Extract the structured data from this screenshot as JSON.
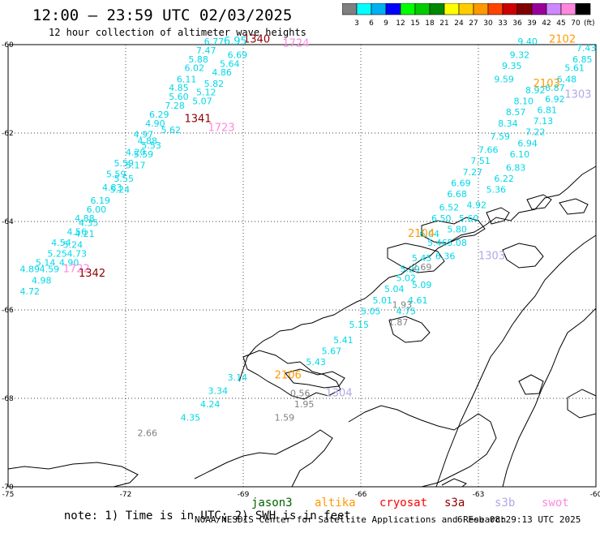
{
  "header": {
    "title": "12:00 – 23:59 UTC 02/03/2025",
    "subtitle": "12 hour collection of altimeter wave heights"
  },
  "color_scale": {
    "unit": "(ft)",
    "bins": [
      {
        "label": "3",
        "color": "#7f7f7f"
      },
      {
        "label": "6",
        "color": "#00ffff"
      },
      {
        "label": "9",
        "color": "#00b0f0"
      },
      {
        "label": "12",
        "color": "#0000ff"
      },
      {
        "label": "15",
        "color": "#00ff00"
      },
      {
        "label": "18",
        "color": "#00cc00"
      },
      {
        "label": "21",
        "color": "#008800"
      },
      {
        "label": "24",
        "color": "#ffff00"
      },
      {
        "label": "27",
        "color": "#ffcc00"
      },
      {
        "label": "30",
        "color": "#ff9900"
      },
      {
        "label": "33",
        "color": "#ff4400"
      },
      {
        "label": "36",
        "color": "#cc0000"
      },
      {
        "label": "39",
        "color": "#800000"
      },
      {
        "label": "42",
        "color": "#990099"
      },
      {
        "label": "45",
        "color": "#cc88ff"
      },
      {
        "label": "70",
        "color": "#ff88dd"
      },
      {
        "label": "",
        "color": "#000000"
      }
    ]
  },
  "map": {
    "lat_labels": [
      "-60",
      "-62",
      "-64",
      "-66",
      "-68",
      "-70"
    ],
    "lon_labels": [
      "-75",
      "-72",
      "-69",
      "-66",
      "-63",
      "-60"
    ],
    "lat_values": [
      -60,
      -62,
      -64,
      -66,
      -68,
      -70
    ],
    "lon_values": [
      -75,
      -72,
      -69,
      -66,
      -63,
      -60
    ]
  },
  "colors": {
    "swh": "#00d8e8",
    "time_dark": "#8b0000",
    "time_pink": "#ff88dd",
    "time_orange": "#ff9900",
    "time_blue": "#0000cc",
    "time_lav": "#b0a8e8",
    "grey": "#808080",
    "coast": "#000000",
    "grid": "#000000"
  },
  "tracks": [
    {
      "id": "track-west",
      "time": {
        "text": "1340",
        "color": "#8b0000"
      },
      "labels": [
        {
          "lat": -60.0,
          "lon": -70.0,
          "v": "6.77"
        },
        {
          "lat": -60.2,
          "lon": -70.2,
          "v": "7.47"
        },
        {
          "lat": -60.3,
          "lon": -69.4,
          "v": "6.69"
        },
        {
          "lat": -60.4,
          "lon": -70.4,
          "v": "5.88"
        },
        {
          "lat": -60.5,
          "lon": -69.6,
          "v": "5.64"
        },
        {
          "lat": -60.6,
          "lon": -70.5,
          "v": "6.02"
        },
        {
          "lat": -60.7,
          "lon": -69.8,
          "v": "4.86"
        },
        {
          "lat": -60.85,
          "lon": -70.7,
          "v": "6.11"
        },
        {
          "lat": -60.95,
          "lon": -70.0,
          "v": "5.82"
        },
        {
          "lat": -61.05,
          "lon": -70.9,
          "v": "4.85"
        },
        {
          "lat": -61.15,
          "lon": -70.2,
          "v": "5.12"
        },
        {
          "lat": -61.25,
          "lon": -70.9,
          "v": "5.60"
        },
        {
          "lat": -61.35,
          "lon": -70.3,
          "v": "5.07"
        },
        {
          "lat": -61.45,
          "lon": -71.0,
          "v": "7.28"
        },
        {
          "lat": -61.65,
          "lon": -71.4,
          "v": "6.29"
        },
        {
          "lat": -61.85,
          "lon": -71.5,
          "v": "4.90"
        },
        {
          "lat": -62.0,
          "lon": -71.1,
          "v": "5.62"
        },
        {
          "lat": -62.1,
          "lon": -71.8,
          "v": "4.97"
        },
        {
          "lat": -62.25,
          "lon": -71.7,
          "v": "4.88"
        },
        {
          "lat": -62.35,
          "lon": -71.6,
          "v": "5.53"
        },
        {
          "lat": -62.5,
          "lon": -72.0,
          "v": "4.20"
        },
        {
          "lat": -62.55,
          "lon": -71.8,
          "v": "5.59"
        },
        {
          "lat": -62.75,
          "lon": -72.3,
          "v": "5.59"
        },
        {
          "lat": -62.8,
          "lon": -72.0,
          "v": "5.17"
        },
        {
          "lat": -63.0,
          "lon": -72.5,
          "v": "5.59"
        },
        {
          "lat": -63.1,
          "lon": -72.3,
          "v": "5.55"
        },
        {
          "lat": -63.3,
          "lon": -72.6,
          "v": "4.83"
        },
        {
          "lat": -63.35,
          "lon": -72.4,
          "v": "5.24"
        },
        {
          "lat": -63.6,
          "lon": -72.9,
          "v": "6.19"
        },
        {
          "lat": -63.8,
          "lon": -73.0,
          "v": "6.00"
        },
        {
          "lat": -64.0,
          "lon": -73.3,
          "v": "4.88"
        },
        {
          "lat": -64.1,
          "lon": -73.2,
          "v": "4.35"
        },
        {
          "lat": -64.3,
          "lon": -73.5,
          "v": "4.56"
        },
        {
          "lat": -64.35,
          "lon": -73.3,
          "v": "4.21"
        },
        {
          "lat": -64.55,
          "lon": -73.9,
          "v": "4.54"
        },
        {
          "lat": -64.6,
          "lon": -73.6,
          "v": "5.24"
        },
        {
          "lat": -64.8,
          "lon": -74.0,
          "v": "5.25"
        },
        {
          "lat": -64.8,
          "lon": -73.5,
          "v": "4.73"
        },
        {
          "lat": -65.0,
          "lon": -74.3,
          "v": "5.14"
        },
        {
          "lat": -65.0,
          "lon": -73.7,
          "v": "4.90"
        },
        {
          "lat": -65.15,
          "lon": -74.7,
          "v": "4.89"
        },
        {
          "lat": -65.15,
          "lon": -74.2,
          "v": "4.59"
        },
        {
          "lat": -65.4,
          "lon": -74.4,
          "v": "4.98"
        },
        {
          "lat": -65.65,
          "lon": -74.7,
          "v": "4.72"
        }
      ]
    },
    {
      "id": "track-center",
      "time": {
        "text": "1341",
        "color": "#8b0000"
      },
      "extra_times": [
        {
          "text": "1723",
          "color": "#ff88dd"
        },
        {
          "text": "1724",
          "color": "#ff88dd"
        },
        {
          "text": "1722",
          "color": "#ff88dd"
        },
        {
          "text": "1342",
          "color": "#8b0000"
        }
      ]
    },
    {
      "id": "track-mid",
      "time": {
        "text": "2104",
        "color": "#ff9900"
      },
      "labels": [
        {
          "lat": -65.35,
          "lon": -65.1,
          "v": "5.02"
        },
        {
          "lat": -65.6,
          "lon": -65.4,
          "v": "5.04"
        },
        {
          "lat": -65.15,
          "lon": -65.0,
          "v": "5.29"
        },
        {
          "lat": -64.9,
          "lon": -64.7,
          "v": "5.45"
        },
        {
          "lat": -64.55,
          "lon": -64.3,
          "v": "5.46"
        },
        {
          "lat": -64.35,
          "lon": -64.5,
          "v": "6.04"
        },
        {
          "lat": -64.0,
          "lon": -64.2,
          "v": "6.50"
        },
        {
          "lat": -63.75,
          "lon": -64.0,
          "v": "6.52"
        },
        {
          "lat": -63.45,
          "lon": -63.8,
          "v": "6.68"
        },
        {
          "lat": -63.2,
          "lon": -63.7,
          "v": "6.69"
        },
        {
          "lat": -62.95,
          "lon": -63.4,
          "v": "7.27"
        },
        {
          "lat": -62.7,
          "lon": -63.2,
          "v": "7.51"
        },
        {
          "lat": -62.45,
          "lon": -63.0,
          "v": "7.66"
        },
        {
          "lat": -62.15,
          "lon": -62.7,
          "v": "7.59"
        },
        {
          "lat": -61.85,
          "lon": -62.5,
          "v": "8.34"
        },
        {
          "lat": -61.6,
          "lon": -62.3,
          "v": "8.57"
        },
        {
          "lat": -61.35,
          "lon": -62.1,
          "v": "8.10"
        },
        {
          "lat": -61.1,
          "lon": -61.8,
          "v": "8.92"
        },
        {
          "lat": -65.85,
          "lon": -65.7,
          "v": "5.01"
        },
        {
          "lat": -66.1,
          "lon": -66.0,
          "v": "5.05"
        },
        {
          "lat": -66.4,
          "lon": -66.3,
          "v": "5.15"
        },
        {
          "lat": -66.75,
          "lon": -66.7,
          "v": "5.41"
        },
        {
          "lat": -67.0,
          "lon": -67.0,
          "v": "5.67"
        },
        {
          "lat": -67.25,
          "lon": -67.4,
          "v": "5.43"
        }
      ]
    },
    {
      "id": "track-east",
      "time": {
        "text": "2103",
        "color": "#ff9900"
      },
      "labels": [
        {
          "lat": -60.15,
          "lon": -60.5,
          "v": "7.43"
        },
        {
          "lat": -60.4,
          "lon": -60.6,
          "v": "6.85"
        },
        {
          "lat": -60.6,
          "lon": -60.8,
          "v": "5.61"
        },
        {
          "lat": -60.85,
          "lon": -61.0,
          "v": "6.48"
        },
        {
          "lat": -61.05,
          "lon": -61.3,
          "v": "6.87"
        },
        {
          "lat": -61.3,
          "lon": -61.3,
          "v": "6.92"
        },
        {
          "lat": -61.55,
          "lon": -61.5,
          "v": "6.81"
        },
        {
          "lat": -61.8,
          "lon": -61.6,
          "v": "7.13"
        },
        {
          "lat": -62.05,
          "lon": -61.8,
          "v": "7.22"
        },
        {
          "lat": -62.3,
          "lon": -62.0,
          "v": "6.94"
        },
        {
          "lat": -62.55,
          "lon": -62.2,
          "v": "6.10"
        },
        {
          "lat": -62.85,
          "lon": -62.3,
          "v": "6.83"
        },
        {
          "lat": -63.1,
          "lon": -62.6,
          "v": "6.22"
        },
        {
          "lat": -63.35,
          "lon": -62.8,
          "v": "5.36"
        },
        {
          "lat": -63.7,
          "lon": -63.3,
          "v": "4.92"
        },
        {
          "lat": -64.0,
          "lon": -63.5,
          "v": "5.60"
        },
        {
          "lat": -64.25,
          "lon": -63.8,
          "v": "5.80"
        },
        {
          "lat": -64.55,
          "lon": -63.8,
          "v": "5.08"
        },
        {
          "lat": -64.85,
          "lon": -64.1,
          "v": "6.36"
        },
        {
          "lat": -65.5,
          "lon": -64.7,
          "v": "5.09"
        },
        {
          "lat": -65.85,
          "lon": -64.8,
          "v": "4.61"
        },
        {
          "lat": -66.1,
          "lon": -65.1,
          "v": "4.75"
        }
      ]
    },
    {
      "id": "track-blue",
      "time": {
        "text": "2102",
        "color": "#ff9900"
      },
      "labels": [
        {
          "lat": -60.0,
          "lon": -62.0,
          "v": "9.40"
        },
        {
          "lat": -60.3,
          "lon": -62.2,
          "v": "9.32"
        },
        {
          "lat": -60.55,
          "lon": -62.4,
          "v": "9.35"
        },
        {
          "lat": -60.85,
          "lon": -62.6,
          "v": "9.59"
        }
      ]
    },
    {
      "id": "track-south",
      "time": {
        "text": "2106",
        "color": "#ff9900"
      },
      "labels": [
        {
          "lat": -67.6,
          "lon": -69.4,
          "v": "3.14"
        },
        {
          "lat": -67.9,
          "lon": -69.9,
          "v": "3.34"
        },
        {
          "lat": -68.2,
          "lon": -70.1,
          "v": "4.24"
        },
        {
          "lat": -68.5,
          "lon": -70.6,
          "v": "4.35"
        }
      ]
    }
  ],
  "grey_values": [
    {
      "lat": -68.85,
      "lon": -71.7,
      "v": "2.66"
    },
    {
      "lat": -68.5,
      "lon": -68.2,
      "v": "1.59"
    },
    {
      "lat": -68.2,
      "lon": -67.7,
      "v": "1.95"
    },
    {
      "lat": -67.95,
      "lon": -67.8,
      "v": "0.56"
    },
    {
      "lat": -65.95,
      "lon": -65.2,
      "v": "1.93"
    },
    {
      "lat": -66.35,
      "lon": -65.3,
      "v": "1.87"
    },
    {
      "lat": -65.1,
      "lon": -64.7,
      "v": "2.69"
    }
  ],
  "time_labels": [
    {
      "lat": -59.95,
      "lon": -69.0,
      "v": "1340",
      "color": "#8b0000"
    },
    {
      "lat": -60.05,
      "lon": -68.0,
      "v": "1724",
      "color": "#ff88dd"
    },
    {
      "lat": -61.75,
      "lon": -70.5,
      "v": "1341",
      "color": "#8b0000"
    },
    {
      "lat": -61.95,
      "lon": -69.9,
      "v": "1723",
      "color": "#ff88dd"
    },
    {
      "lat": -65.15,
      "lon": -73.6,
      "v": "1722",
      "color": "#ff88dd"
    },
    {
      "lat": -65.25,
      "lon": -73.2,
      "v": "1342",
      "color": "#8b0000"
    },
    {
      "lat": -59.95,
      "lon": -61.2,
      "v": "2102",
      "color": "#ff9900"
    },
    {
      "lat": -60.95,
      "lon": -61.6,
      "v": "2103",
      "color": "#ff9900"
    },
    {
      "lat": -64.35,
      "lon": -64.8,
      "v": "2104",
      "color": "#ff9900"
    },
    {
      "lat": -67.55,
      "lon": -68.2,
      "v": "2106",
      "color": "#ff9900"
    },
    {
      "lat": -61.2,
      "lon": -60.8,
      "v": "1303",
      "color": "#b0a8e8"
    },
    {
      "lat": -64.85,
      "lon": -63.0,
      "v": "1303",
      "color": "#b0a8e8"
    },
    {
      "lat": -67.95,
      "lon": -66.9,
      "v": "1304",
      "color": "#b0a8e8"
    },
    {
      "lat": -60.0,
      "lon": -69.5,
      "v": "6.95",
      "color": "#00d8e8"
    }
  ],
  "note": {
    "text": "note: 1) Time is in UTC; 2) SWH is in feet",
    "satellites": [
      {
        "name": "jason3",
        "color": "#006400"
      },
      {
        "name": "altika",
        "color": "#ff9900"
      },
      {
        "name": "cryosat",
        "color": "#ff0000"
      },
      {
        "name": "s3a",
        "color": "#8b0000"
      },
      {
        "name": "s3b",
        "color": "#b0a8e8"
      },
      {
        "name": "swot",
        "color": "#ff88dd"
      }
    ]
  },
  "footer": {
    "left": "NOAA/NESDIS Center for Satellite Applications and Research",
    "right": "6 Feb 08:29:13 UTC 2025"
  }
}
